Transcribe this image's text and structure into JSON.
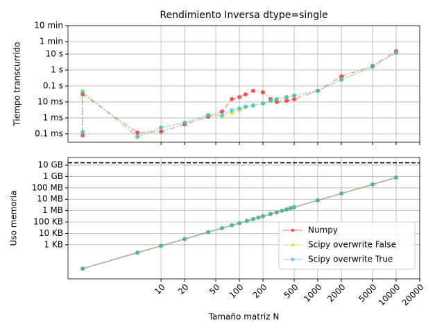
{
  "chart_data": [
    {
      "type": "line",
      "title": "Rendimiento Inversa dtype=single",
      "ylabel": "Tiempo transcurrido",
      "xscale": "log",
      "yscale": "log",
      "grid": true,
      "linestyle": "dashdot",
      "xlim": [
        0.65,
        20000
      ],
      "xticks": [
        10,
        20,
        50,
        100,
        200,
        500,
        1000,
        2000,
        5000,
        10000,
        20000
      ],
      "ylim": [
        3e-05,
        600
      ],
      "yticks": [
        {
          "value": 0.0001,
          "label": "0.1 ms"
        },
        {
          "value": 0.001,
          "label": "1 ms"
        },
        {
          "value": 0.01,
          "label": "10 ms"
        },
        {
          "value": 0.1,
          "label": "0.1 s"
        },
        {
          "value": 1,
          "label": "1 s"
        },
        {
          "value": 10,
          "label": "10 s"
        },
        {
          "value": 60,
          "label": "1 min"
        },
        {
          "value": 600,
          "label": "10 min"
        }
      ],
      "x": [
        1,
        1,
        5,
        10,
        20,
        40,
        60,
        80,
        100,
        120,
        150,
        200,
        250,
        300,
        400,
        500,
        1000,
        2000,
        5000,
        10000
      ],
      "series": [
        {
          "name": "Numpy",
          "color": "#ff0000",
          "values": [
            8e-05,
            0.03,
            0.00012,
            0.00014,
            0.0004,
            0.0012,
            0.0025,
            0.015,
            0.02,
            0.03,
            0.05,
            0.04,
            0.015,
            0.01,
            0.012,
            0.015,
            0.05,
            0.4,
            1.8,
            15
          ]
        },
        {
          "name": "Scipy overwrite False",
          "color": "#d4d41a",
          "values": [
            0.00013,
            0.05,
            6e-05,
            0.00025,
            0.0005,
            0.0015,
            0.0012,
            0.002,
            0.003,
            0.005,
            0.006,
            0.008,
            0.012,
            0.015,
            0.02,
            0.025,
            0.05,
            0.25,
            1.6,
            12
          ]
        },
        {
          "name": "Scipy overwrite True",
          "color": "#17becf",
          "values": [
            0.00013,
            0.04,
            7e-05,
            0.00025,
            0.0005,
            0.0015,
            0.0015,
            0.003,
            0.004,
            0.005,
            0.006,
            0.008,
            0.012,
            0.015,
            0.02,
            0.025,
            0.05,
            0.25,
            1.6,
            12
          ]
        }
      ]
    },
    {
      "type": "line",
      "ylabel": "Uso memoria",
      "xlabel": "Tamaño matriz N",
      "xscale": "log",
      "yscale": "log",
      "grid": true,
      "linestyle": "solid",
      "legend": "lower right",
      "xlim": [
        0.65,
        20000
      ],
      "xticks": [
        10,
        20,
        50,
        100,
        200,
        500,
        1000,
        2000,
        5000,
        10000,
        20000
      ],
      "ylim": [
        1,
        47000000000
      ],
      "hline": 16000000000,
      "yticks": [
        {
          "value": 1000,
          "label": "1 KB"
        },
        {
          "value": 10000,
          "label": "10 KB"
        },
        {
          "value": 100000,
          "label": "100 KB"
        },
        {
          "value": 1000000,
          "label": "1 MB"
        },
        {
          "value": 10000000,
          "label": "10 MB"
        },
        {
          "value": 100000000,
          "label": "100 MB"
        },
        {
          "value": 1000000000,
          "label": "1 GB"
        },
        {
          "value": 10000000000,
          "label": "10 GB"
        }
      ],
      "x": [
        1,
        5,
        10,
        20,
        40,
        60,
        80,
        100,
        125,
        150,
        175,
        200,
        250,
        300,
        350,
        400,
        450,
        500,
        1000,
        2000,
        5000,
        10000
      ],
      "series": [
        {
          "name": "Numpy",
          "color": "#ff0000",
          "values": [
            8,
            200,
            800,
            3200,
            12800,
            28800,
            51200,
            80000,
            125000,
            180000,
            245000,
            320000,
            500000,
            720000,
            980000,
            1280000,
            1620000,
            2000000,
            8000000,
            32000000,
            200000000,
            800000000
          ]
        },
        {
          "name": "Scipy overwrite False",
          "color": "#d4d41a",
          "values": [
            8,
            200,
            800,
            3200,
            12800,
            28800,
            51200,
            80000,
            125000,
            180000,
            245000,
            320000,
            500000,
            720000,
            980000,
            1280000,
            1620000,
            2000000,
            8000000,
            32000000,
            200000000,
            800000000
          ]
        },
        {
          "name": "Scipy overwrite True",
          "color": "#17becf",
          "values": [
            8,
            200,
            800,
            3200,
            12800,
            28800,
            51200,
            80000,
            125000,
            180000,
            245000,
            320000,
            500000,
            720000,
            980000,
            1280000,
            1620000,
            2000000,
            8000000,
            32000000,
            200000000,
            800000000
          ]
        }
      ]
    }
  ]
}
